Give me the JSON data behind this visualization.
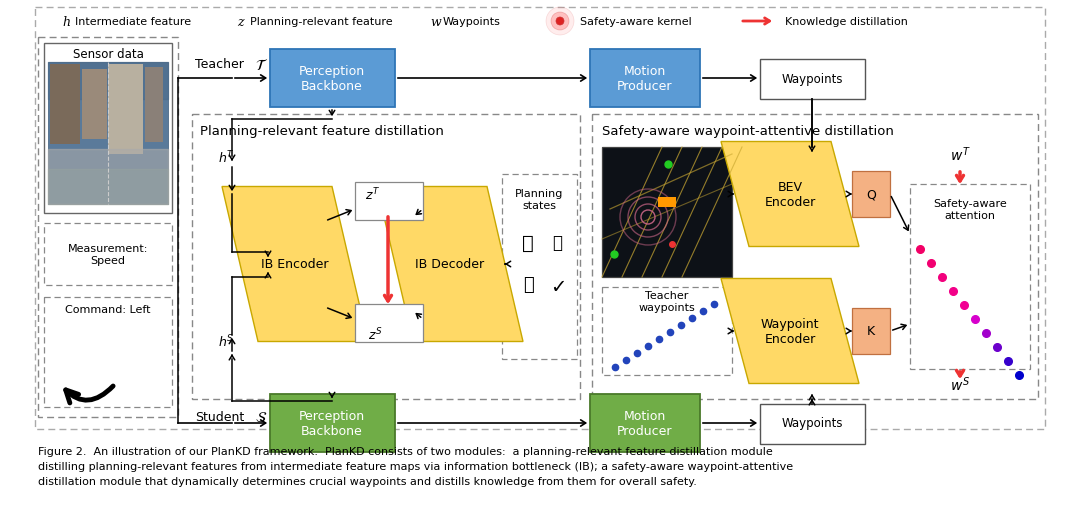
{
  "fig_width": 10.8,
  "fig_height": 5.1,
  "bg_color": "#ffffff",
  "blue_box_color": "#5b9bd5",
  "green_box_color": "#70ad47",
  "yellow_box_color": "#ffd966",
  "orange_box_color": "#f4b183",
  "caption_line1": "Figure 2.  An illustration of our PlanKD framework.  PlanKD consists of two modules:  a planning-relevant feature distillation module",
  "caption_line2": "distilling planning-relevant features from intermediate feature maps via information bottleneck (IB); a safety-aware waypoint-attentive",
  "caption_line3": "distillation module that dynamically determines crucial waypoints and distills knowledge from them for overall safety."
}
